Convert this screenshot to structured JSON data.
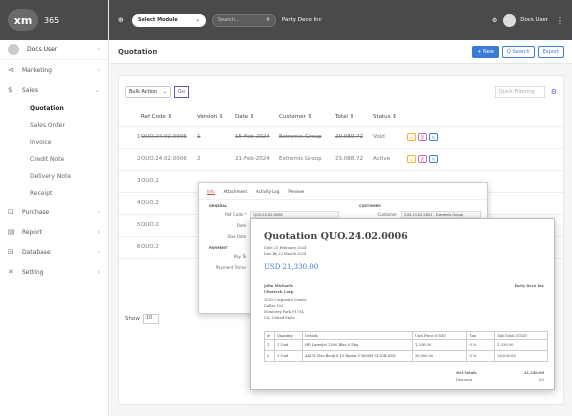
{
  "app": {
    "logo": "xm",
    "name": "365"
  },
  "topbar": {
    "select_module": "Select Module",
    "search_placeholder": "Search...",
    "party": "Party Deco Inc",
    "user": "Docs User"
  },
  "sidebar": {
    "user": "Docs User",
    "items": [
      {
        "label": "Marketing",
        "icon": "megaphone-icon"
      },
      {
        "label": "Sales",
        "icon": "dollar-icon"
      }
    ],
    "sales_sub": [
      "Quotation",
      "Sales Order",
      "Invoice",
      "Credit Note",
      "Delivery Note",
      "Receipt"
    ],
    "items2": [
      {
        "label": "Purchase",
        "icon": "cart-icon"
      },
      {
        "label": "Report",
        "icon": "report-icon"
      },
      {
        "label": "Database",
        "icon": "database-icon"
      },
      {
        "label": "Setting",
        "icon": "wrench-icon"
      }
    ]
  },
  "page": {
    "title": "Quotation",
    "new": "+ New",
    "search": "Q Search",
    "export": "Export"
  },
  "toolbar": {
    "bulk": "Bulk Action",
    "go": "Go",
    "quick": "Quick Filtering"
  },
  "table": {
    "headers": [
      "",
      "Ref Code ⇕",
      "Version ⇕",
      "Date ⇕",
      "Customer ⇕",
      "Total ⇕",
      "Status ⇕",
      ""
    ],
    "rows": [
      {
        "n": "1",
        "ref": "QUO.24.02.0006",
        "ver": "1",
        "date": "15-Feb-2024",
        "cust": "Extremis Group",
        "total": "29,089.72",
        "status": "Void"
      },
      {
        "n": "2",
        "ref": "QUO.24.02.0006",
        "ver": "2",
        "date": "21-Feb-2024",
        "cust": "Extremis Group",
        "total": "23,088.72",
        "status": "Active"
      },
      {
        "n": "3",
        "ref": "QUO.2"
      },
      {
        "n": "4",
        "ref": "QUO.2"
      },
      {
        "n": "5",
        "ref": "QUO.2"
      },
      {
        "n": "6",
        "ref": "QUO.2"
      }
    ]
  },
  "show": {
    "label": "Show",
    "value": "10"
  },
  "modal": {
    "tabs": [
      "Info",
      "Attachment",
      "Activity Log",
      "Preview"
    ],
    "general": "GENERAL",
    "customer": "CUSTOMER",
    "payment": "PAYMENT",
    "ref_label": "Ref Code *",
    "ref_val": "QUO.24.02.0006",
    "date_label": "Date",
    "date_val": "21-Feb",
    "due_label": "Due Date",
    "due_val": "22-Mar",
    "cust_label": "Customer",
    "cust_val": "CUS.23.02.0001 - Extremis Group",
    "pay_label": "Pay To",
    "pay_val": "- Selec",
    "terms_label": "Payment Terms",
    "terms_val": "30 Days"
  },
  "doc": {
    "title": "Quotation QUO.24.02.0006",
    "date": "Date 21 February 2024",
    "due": "Due By 22 March 2024",
    "total": "USD 21,330.00",
    "party": "Party Deco Inc",
    "to": [
      "John Michaels",
      "Uberteck Corp",
      "1005 Corporate Center",
      "Dallas 102",
      "Monterey Park 91754",
      "CA, United State"
    ],
    "cols": [
      "#",
      "Quantity",
      "Details",
      "Unit Price (USD)",
      "Tax",
      "Sub Total (USD)"
    ],
    "rows": [
      [
        "1",
        "1 Unit",
        "HP LaserJet 1200 Blue 0.5kg",
        "1,330.00",
        "0 %",
        "1,330.00"
      ],
      [
        "2",
        "1 Unit",
        "ASUS Vivo Book S 15 Ryzen 5 5600H 512GB SSD",
        "20,000.00",
        "0 %",
        "20,000.00"
      ]
    ],
    "net_label": "Net Totals",
    "net": "21,330.00",
    "disc_label": "Discount",
    "disc": "(0)"
  }
}
